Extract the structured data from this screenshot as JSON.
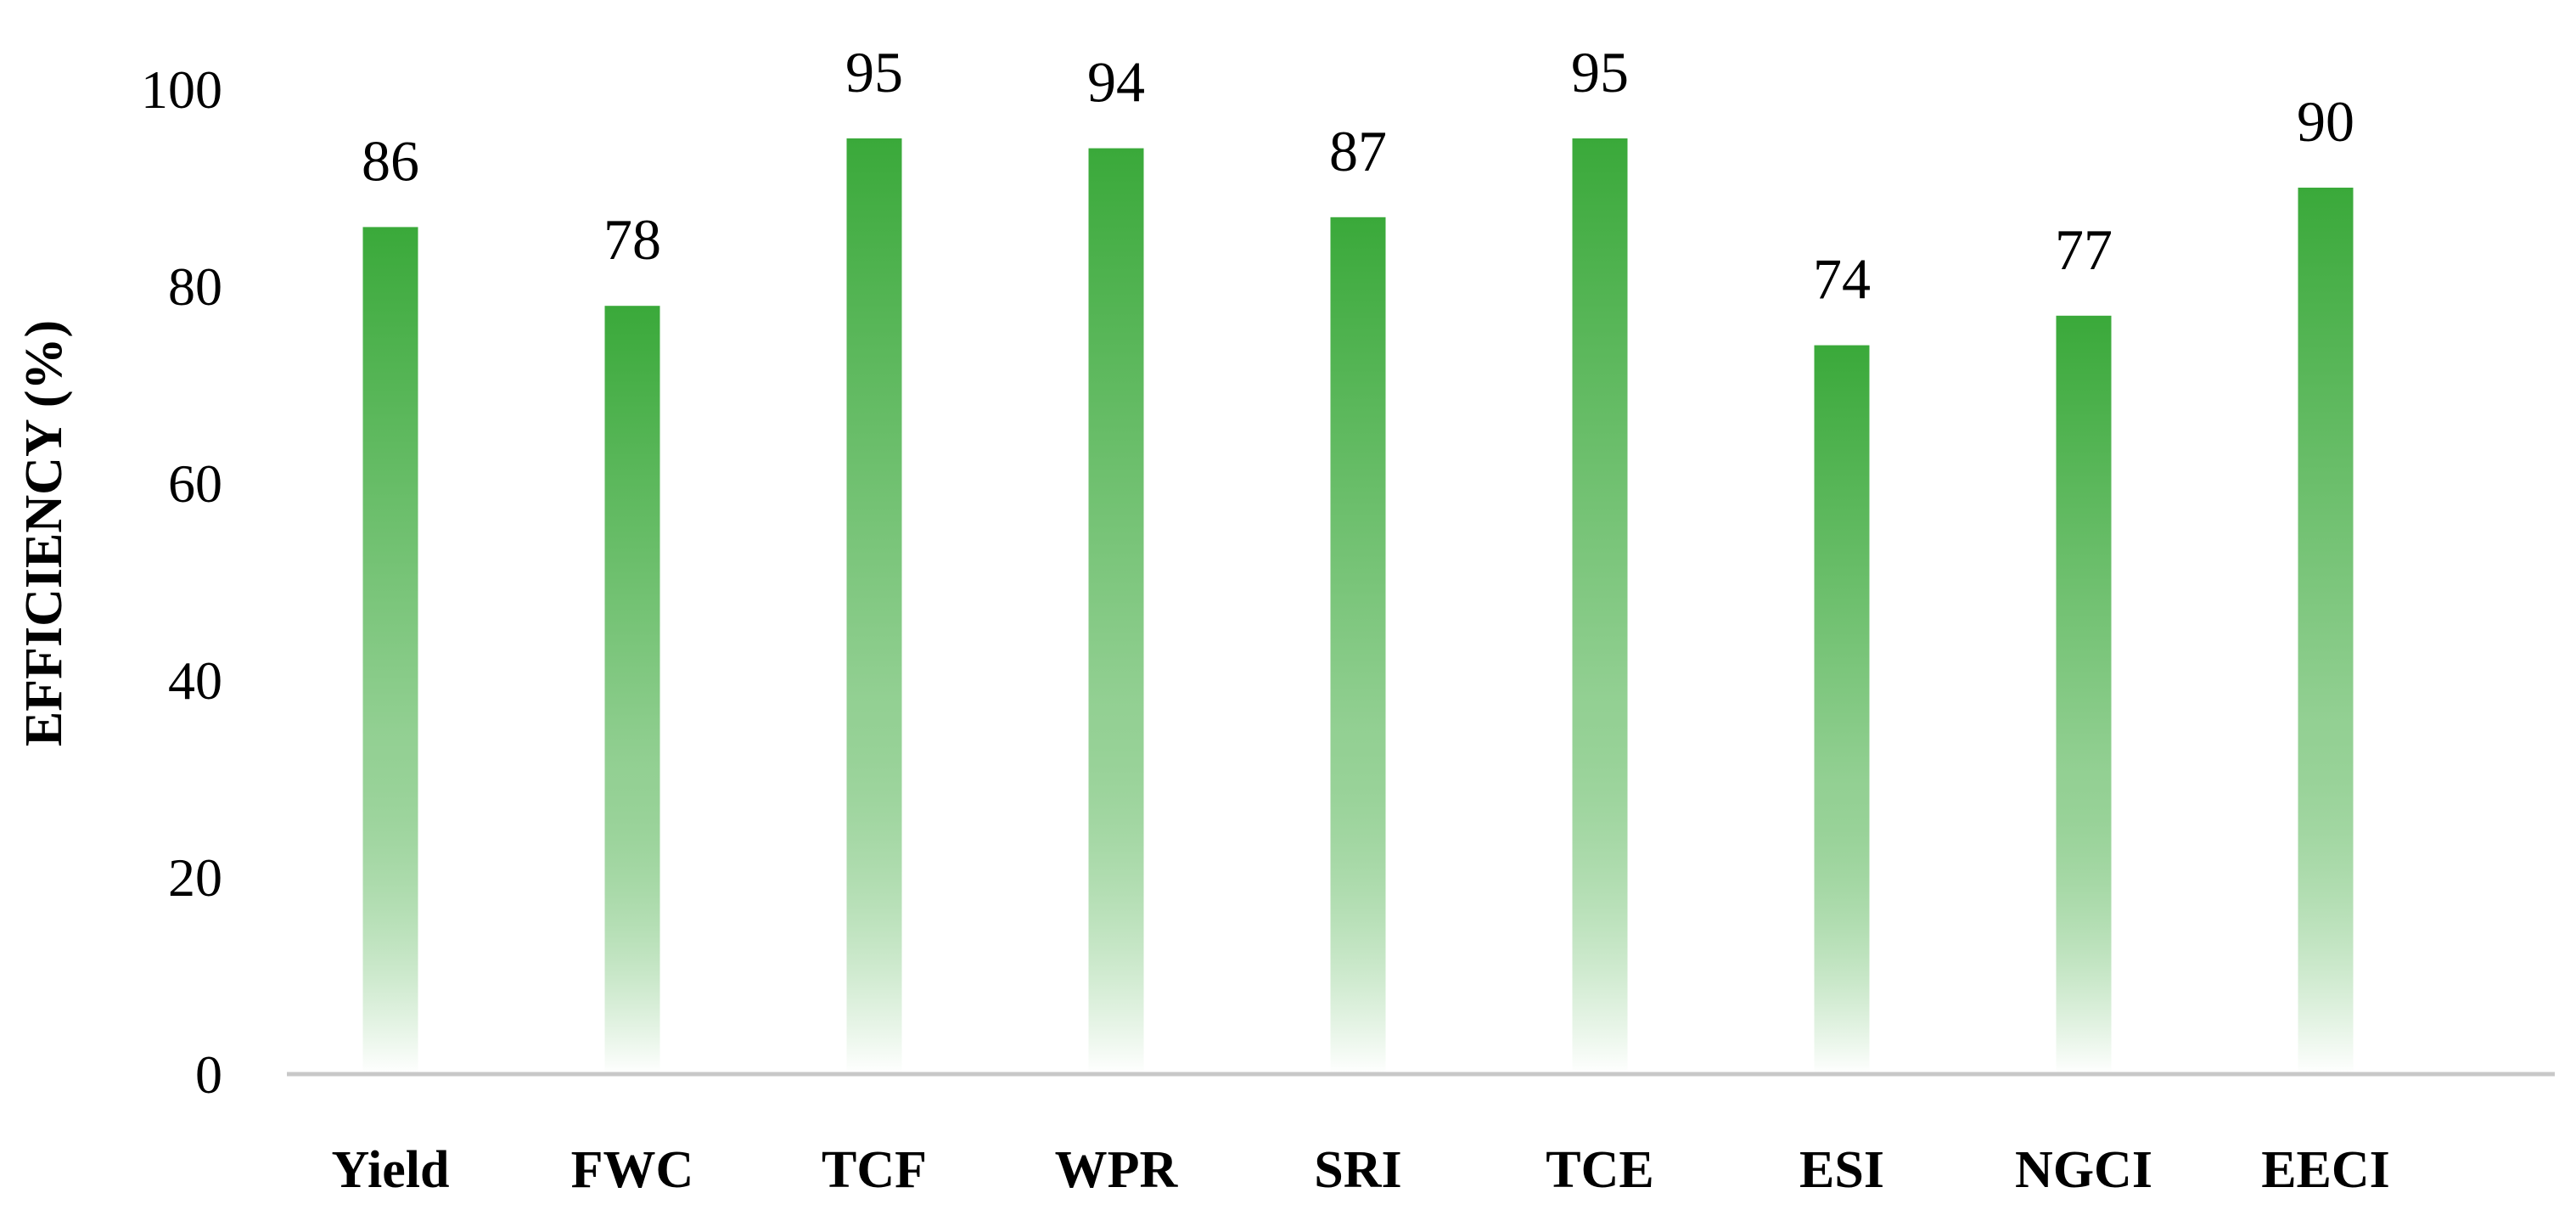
{
  "chart_data": {
    "type": "bar",
    "categories": [
      "Yield",
      "FWC",
      "TCF",
      "WPR",
      "SRI",
      "TCE",
      "ESI",
      "NGCI",
      "EECI"
    ],
    "values": [
      86,
      78,
      95,
      94,
      87,
      95,
      74,
      77,
      90
    ],
    "data_labels": [
      "86",
      "78",
      "95",
      "94",
      "87",
      "95",
      "74",
      "77",
      "90"
    ],
    "ylabel": "EFFICIENCY (%)",
    "xlabel": "",
    "ylim": [
      0,
      100
    ],
    "yticks": [
      "0",
      "20",
      "40",
      "60",
      "80",
      "100"
    ],
    "grid": false,
    "legend": "none",
    "bar_color_top": "#3aa93a",
    "bar_color_bottom": "#ffffff",
    "axis_color": "#c8c8c8"
  }
}
